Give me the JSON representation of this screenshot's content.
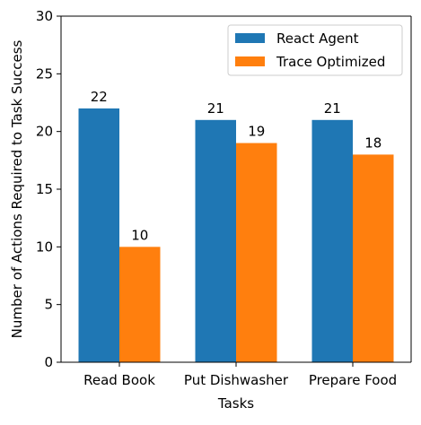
{
  "chart_data": {
    "type": "bar",
    "categories": [
      "Read Book",
      "Put Dishwasher",
      "Prepare Food"
    ],
    "series": [
      {
        "name": "React Agent",
        "values": [
          22,
          21,
          21
        ],
        "color": "#1f77b4"
      },
      {
        "name": "Trace Optimized",
        "values": [
          10,
          19,
          18
        ],
        "color": "#ff7f0e"
      }
    ],
    "title": "",
    "xlabel": "Tasks",
    "ylabel": "Number of Actions Required to Task Success",
    "ylim": [
      0,
      30
    ],
    "yticks": [
      0,
      5,
      10,
      15,
      20,
      25,
      30
    ],
    "grid": false,
    "legend_position": "top-right",
    "data_labels": true
  }
}
